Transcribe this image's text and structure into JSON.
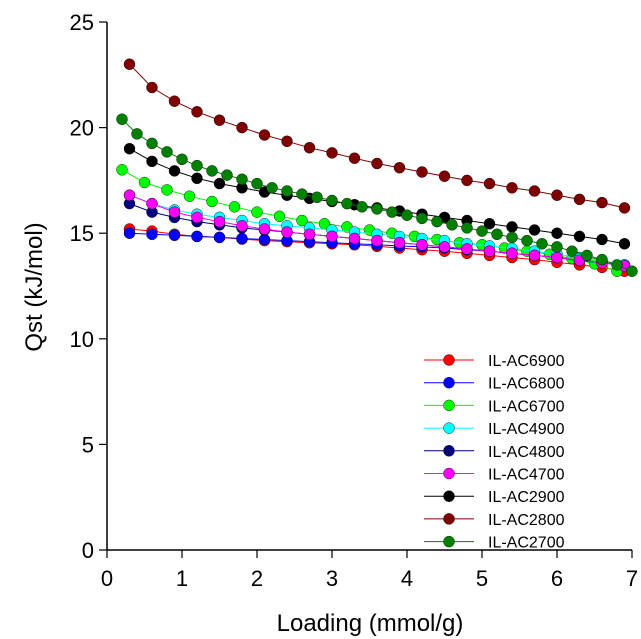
{
  "chart_data": {
    "type": "line",
    "xlabel": "Loading (mmol/g)",
    "ylabel": "Qst (kJ/mol)",
    "xlim": [
      0,
      7
    ],
    "ylim": [
      0,
      25
    ],
    "xticks": [
      0,
      1,
      2,
      3,
      4,
      5,
      6,
      7
    ],
    "yticks": [
      0,
      5,
      10,
      15,
      20,
      25
    ],
    "grid": false,
    "legend_position": "lower-right",
    "series": [
      {
        "name": "IL-AC6900",
        "color": "#ff0000",
        "x": [
          0.3,
          0.6,
          0.9,
          1.2,
          1.5,
          1.8,
          2.1,
          2.4,
          2.7,
          3.0,
          3.3,
          3.6,
          3.9,
          4.2,
          4.5,
          4.8,
          5.1,
          5.4,
          5.7,
          6.0,
          6.3,
          6.6,
          6.9
        ],
        "y": [
          15.2,
          15.1,
          14.95,
          14.85,
          14.8,
          14.72,
          14.65,
          14.6,
          14.55,
          14.5,
          14.45,
          14.38,
          14.3,
          14.22,
          14.15,
          14.05,
          13.95,
          13.85,
          13.75,
          13.62,
          13.5,
          13.38,
          13.2
        ]
      },
      {
        "name": "IL-AC6800",
        "color": "#0000ff",
        "x": [
          0.3,
          0.6,
          0.9,
          1.2,
          1.5,
          1.8,
          2.1,
          2.4,
          2.7,
          3.0,
          3.3,
          3.6,
          3.9,
          4.2,
          4.5,
          4.8,
          5.1,
          5.4,
          5.7,
          6.0,
          6.3,
          6.6,
          6.9
        ],
        "y": [
          15.0,
          14.95,
          14.9,
          14.85,
          14.8,
          14.75,
          14.7,
          14.65,
          14.6,
          14.55,
          14.5,
          14.45,
          14.4,
          14.35,
          14.3,
          14.22,
          14.15,
          14.05,
          13.95,
          13.85,
          13.75,
          13.6,
          13.5
        ]
      },
      {
        "name": "IL-AC6700",
        "color": "#00ff00",
        "x": [
          0.2,
          0.5,
          0.8,
          1.1,
          1.4,
          1.7,
          2.0,
          2.3,
          2.6,
          2.9,
          3.2,
          3.5,
          3.8,
          4.1,
          4.4,
          4.7,
          5.0,
          5.3,
          5.6,
          5.9,
          6.2,
          6.5,
          6.8
        ],
        "y": [
          18.0,
          17.4,
          17.05,
          16.75,
          16.5,
          16.25,
          16.0,
          15.8,
          15.6,
          15.45,
          15.3,
          15.15,
          15.0,
          14.85,
          14.7,
          14.55,
          14.45,
          14.3,
          14.15,
          14.0,
          13.8,
          13.55,
          13.2
        ]
      },
      {
        "name": "IL-AC4900",
        "color": "#00ffff",
        "x": [
          0.3,
          0.6,
          0.9,
          1.2,
          1.5,
          1.8,
          2.1,
          2.4,
          2.7,
          3.0,
          3.3,
          3.6,
          3.9,
          4.2,
          4.5,
          4.8,
          5.1,
          5.4,
          5.7,
          6.0,
          6.3,
          6.6,
          6.9
        ],
        "y": [
          16.8,
          16.4,
          16.1,
          15.9,
          15.75,
          15.6,
          15.45,
          15.35,
          15.25,
          15.15,
          15.05,
          14.95,
          14.85,
          14.75,
          14.65,
          14.5,
          14.4,
          14.28,
          14.15,
          14.0,
          13.85,
          13.7,
          13.5
        ]
      },
      {
        "name": "IL-AC4800",
        "color": "#00007f",
        "x": [
          0.3,
          0.6,
          0.9,
          1.2,
          1.5,
          1.8,
          2.1,
          2.4,
          2.7,
          3.0,
          3.3,
          3.6,
          3.9,
          4.2,
          4.5,
          4.8,
          5.1,
          5.4,
          5.7,
          6.0,
          6.3,
          6.6,
          6.9
        ],
        "y": [
          16.4,
          16.0,
          15.75,
          15.55,
          15.4,
          15.25,
          15.15,
          15.05,
          14.95,
          14.85,
          14.75,
          14.65,
          14.55,
          14.45,
          14.35,
          14.25,
          14.15,
          14.05,
          13.95,
          13.85,
          13.7,
          13.6,
          13.45
        ]
      },
      {
        "name": "IL-AC4700",
        "color": "#ff00ff",
        "x": [
          0.3,
          0.6,
          0.9,
          1.2,
          1.5,
          1.8,
          2.1,
          2.4,
          2.7,
          3.0,
          3.3,
          3.6,
          3.9,
          4.2,
          4.5,
          4.8,
          5.1,
          5.4,
          5.7,
          6.0,
          6.3,
          6.6,
          6.9
        ],
        "y": [
          16.8,
          16.4,
          16.0,
          15.75,
          15.55,
          15.35,
          15.2,
          15.05,
          14.95,
          14.85,
          14.75,
          14.65,
          14.55,
          14.45,
          14.35,
          14.25,
          14.15,
          14.05,
          13.95,
          13.85,
          13.72,
          13.6,
          13.45
        ]
      },
      {
        "name": "IL-AC2900",
        "color": "#000000",
        "x": [
          0.3,
          0.6,
          0.9,
          1.2,
          1.5,
          1.8,
          2.1,
          2.4,
          2.7,
          3.0,
          3.3,
          3.6,
          3.9,
          4.2,
          4.5,
          4.8,
          5.1,
          5.4,
          5.7,
          6.0,
          6.3,
          6.6,
          6.9
        ],
        "y": [
          19.0,
          18.4,
          17.95,
          17.6,
          17.35,
          17.15,
          16.95,
          16.8,
          16.65,
          16.5,
          16.35,
          16.2,
          16.05,
          15.9,
          15.75,
          15.6,
          15.45,
          15.3,
          15.15,
          15.0,
          14.85,
          14.7,
          14.5
        ]
      },
      {
        "name": "IL-AC2800",
        "color": "#7f0000",
        "x": [
          0.3,
          0.6,
          0.9,
          1.2,
          1.5,
          1.8,
          2.1,
          2.4,
          2.7,
          3.0,
          3.3,
          3.6,
          3.9,
          4.2,
          4.5,
          4.8,
          5.1,
          5.4,
          5.7,
          6.0,
          6.3,
          6.6,
          6.9
        ],
        "y": [
          23.0,
          21.9,
          21.25,
          20.75,
          20.35,
          20.0,
          19.65,
          19.35,
          19.05,
          18.8,
          18.55,
          18.3,
          18.1,
          17.9,
          17.7,
          17.5,
          17.35,
          17.15,
          17.0,
          16.8,
          16.6,
          16.45,
          16.2
        ]
      },
      {
        "name": "IL-AC2700",
        "color": "#007f00",
        "x": [
          0.2,
          0.4,
          0.6,
          0.8,
          1.0,
          1.2,
          1.4,
          1.6,
          1.8,
          2.0,
          2.2,
          2.4,
          2.6,
          2.8,
          3.0,
          3.2,
          3.4,
          3.6,
          3.8,
          4.0,
          4.2,
          4.4,
          4.6,
          4.8,
          5.0,
          5.2,
          5.4,
          5.6,
          5.8,
          6.0,
          6.2,
          6.4,
          6.6,
          6.8,
          7.0
        ],
        "y": [
          20.4,
          19.7,
          19.25,
          18.85,
          18.5,
          18.2,
          17.95,
          17.75,
          17.55,
          17.35,
          17.15,
          17.0,
          16.85,
          16.7,
          16.55,
          16.4,
          16.25,
          16.15,
          16.0,
          15.85,
          15.7,
          15.55,
          15.4,
          15.25,
          15.1,
          14.95,
          14.8,
          14.65,
          14.5,
          14.35,
          14.15,
          13.95,
          13.75,
          13.5,
          13.2
        ]
      }
    ]
  }
}
